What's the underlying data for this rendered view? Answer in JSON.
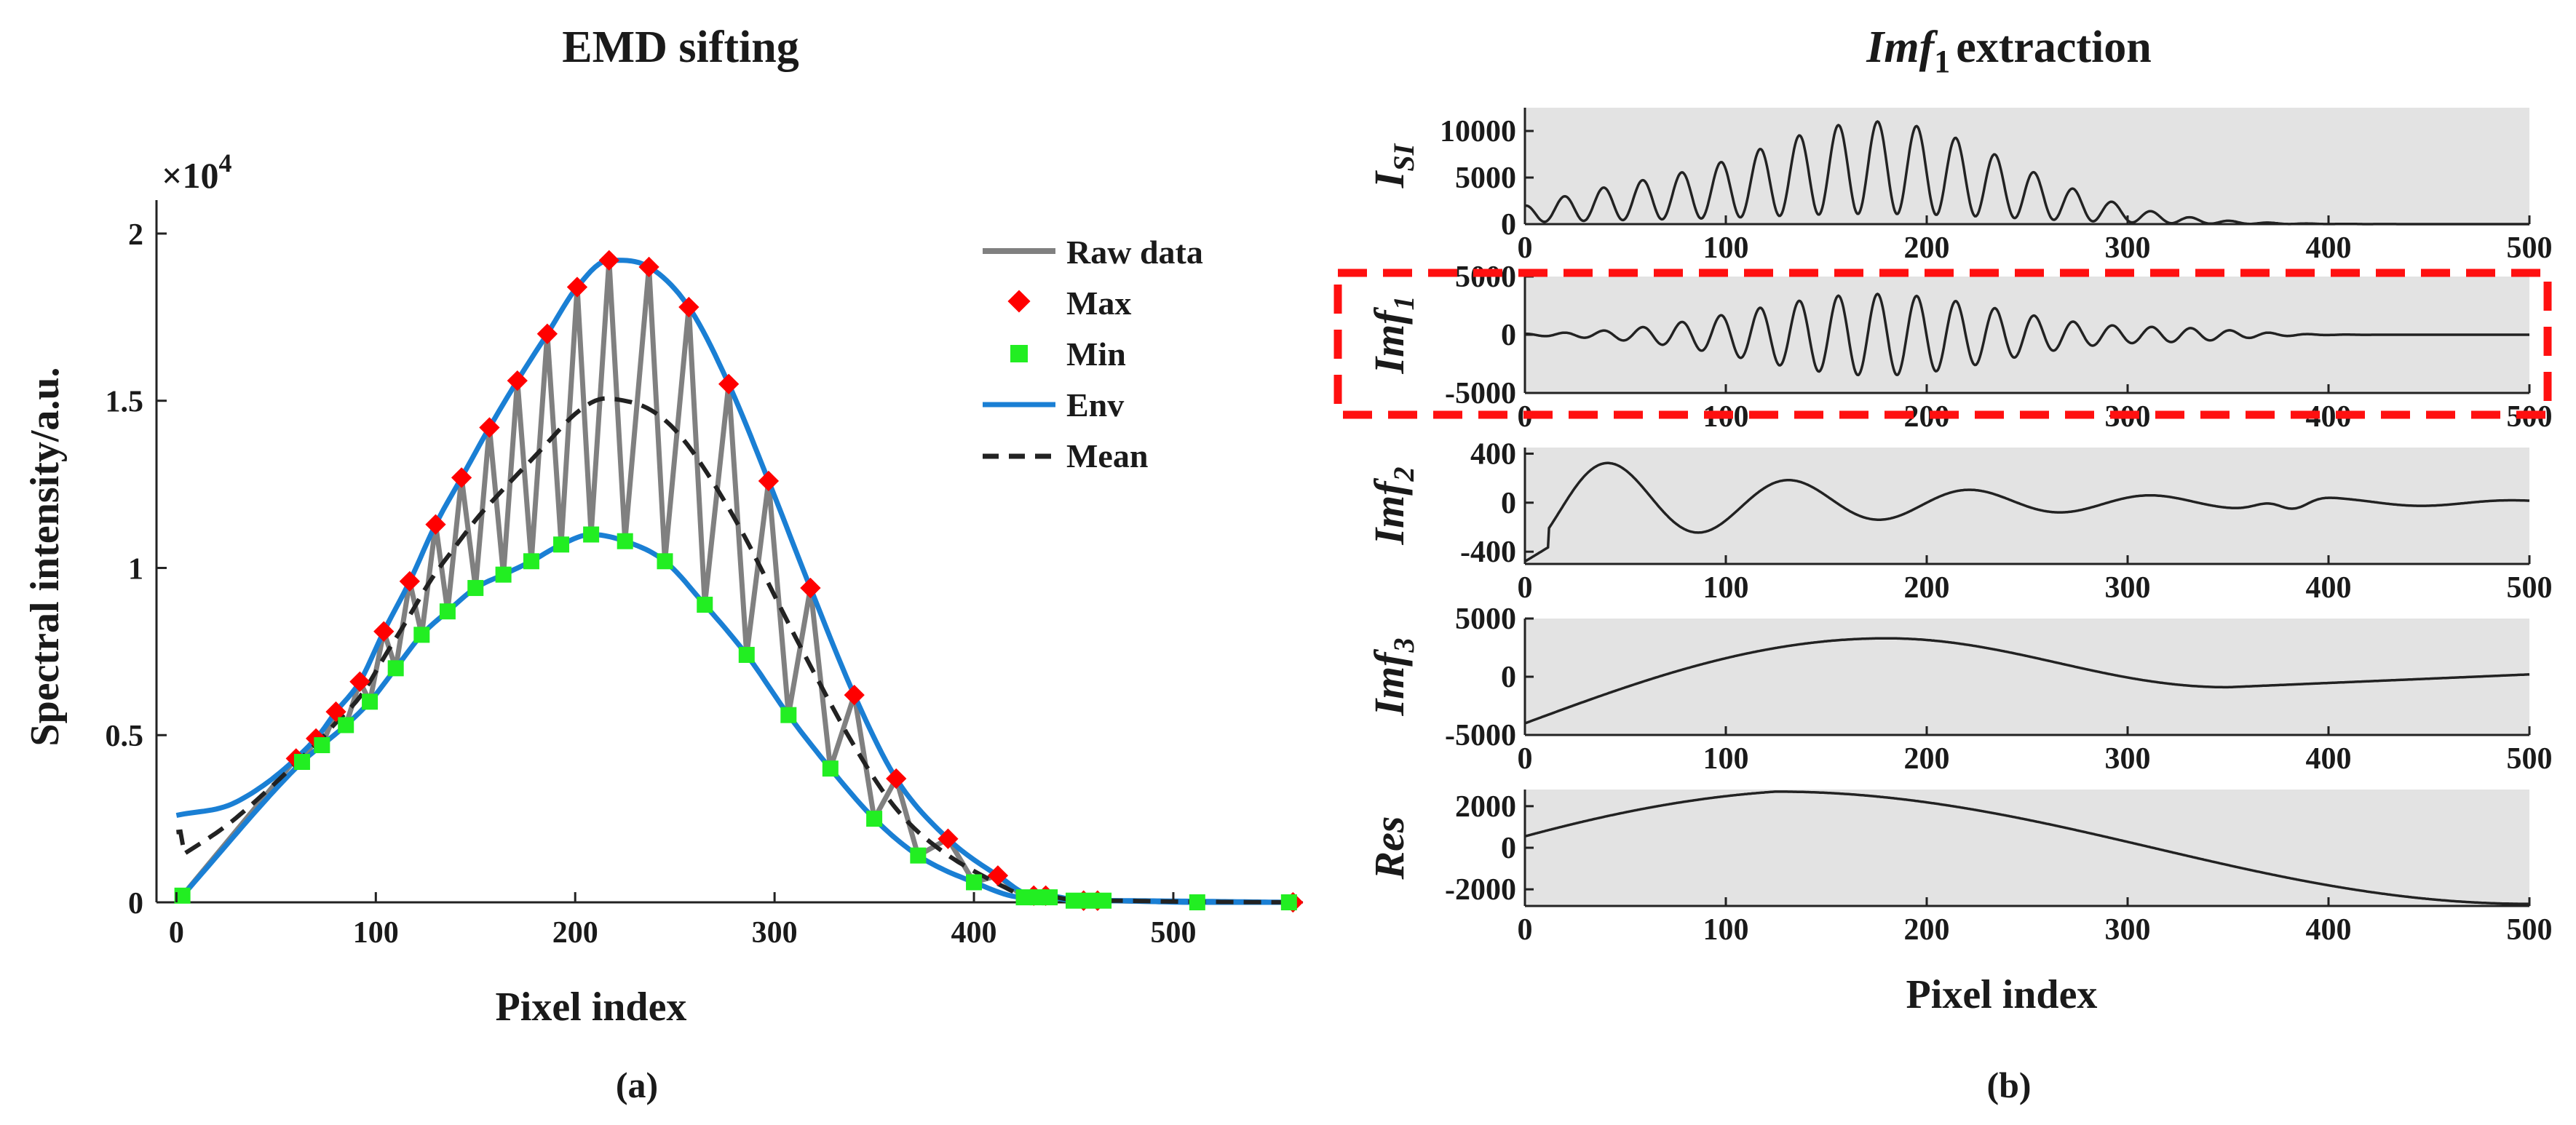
{
  "chart_data": [
    {
      "type": "line",
      "title": "EMD sifting",
      "xlabel": "Pixel index",
      "ylabel": "Spectral intensity/a.u.",
      "exponent_label": "×10",
      "exponent_power": "4",
      "panel_label": "(a)",
      "xlim": [
        -10,
        565
      ],
      "ylim": [
        0,
        2.1
      ],
      "xticks": [
        0,
        100,
        200,
        300,
        400,
        500
      ],
      "yticks": [
        0,
        0.5,
        1,
        1.5,
        2
      ],
      "ytick_labels": [
        "0",
        "0.5",
        "1",
        "1.5",
        "2"
      ],
      "legend": [
        "Raw data",
        "Max",
        "Min",
        "Env",
        "Mean"
      ],
      "colors": {
        "raw": "#808080",
        "max": "#ff0000",
        "min": "#22ee22",
        "env": "#1a7fd4",
        "mean": "#222222"
      },
      "series": [
        {
          "name": "Max",
          "x": [
            60,
            70,
            80,
            92,
            104,
            117,
            130,
            143,
            157,
            171,
            186,
            201,
            217,
            237,
            257,
            277,
            297,
            318,
            340,
            361,
            387,
            412,
            430,
            436,
            455,
            462,
            560
          ],
          "y": [
            0.43,
            0.49,
            0.57,
            0.66,
            0.81,
            0.96,
            1.13,
            1.27,
            1.42,
            1.56,
            1.7,
            1.84,
            1.92,
            1.9,
            1.78,
            1.55,
            1.26,
            0.94,
            0.62,
            0.37,
            0.19,
            0.08,
            0.02,
            0.02,
            0.005,
            0.005,
            0.0
          ]
        },
        {
          "name": "Min",
          "x": [
            3,
            63,
            73,
            85,
            97,
            110,
            123,
            136,
            150,
            164,
            178,
            193,
            208,
            225,
            245,
            265,
            286,
            307,
            328,
            350,
            372,
            400,
            425,
            432,
            438,
            450,
            458,
            465,
            512,
            558
          ],
          "y": [
            0.02,
            0.42,
            0.47,
            0.53,
            0.6,
            0.7,
            0.8,
            0.87,
            0.94,
            0.98,
            1.02,
            1.07,
            1.1,
            1.08,
            1.02,
            0.89,
            0.74,
            0.56,
            0.4,
            0.25,
            0.14,
            0.06,
            0.015,
            0.015,
            0.015,
            0.005,
            0.005,
            0.005,
            0.0,
            0.0
          ]
        }
      ]
    },
    {
      "type": "line",
      "title": "extraction",
      "title_italic": "Imf",
      "title_sub": "1",
      "xlabel": "Pixel index",
      "panel_label": "(b)",
      "xlim": [
        0,
        500
      ],
      "xticks": [
        0,
        100,
        200,
        300,
        400,
        500
      ],
      "line_color": "#222222",
      "background": "#e3e3e3",
      "highlight_color": "#ff1010",
      "subplots": [
        {
          "ylabel": "I",
          "ylabel_sub": "SI",
          "ylim": [
            0,
            12500
          ],
          "yticks": [
            0,
            5000,
            10000
          ],
          "ytick_labels": [
            "0",
            "5000",
            "10000"
          ]
        },
        {
          "ylabel": "Imf",
          "ylabel_sub": "1",
          "ylim": [
            -5000,
            5000
          ],
          "yticks": [
            -5000,
            0,
            5000
          ],
          "ytick_labels": [
            "-5000",
            "0",
            "5000"
          ],
          "highlighted": true
        },
        {
          "ylabel": "Imf",
          "ylabel_sub": "2",
          "ylim": [
            -500,
            450
          ],
          "yticks": [
            -400,
            0,
            400
          ],
          "ytick_labels": [
            "-400",
            "0",
            "400"
          ]
        },
        {
          "ylabel": "Imf",
          "ylabel_sub": "3",
          "ylim": [
            -5000,
            5000
          ],
          "yticks": [
            -5000,
            0,
            5000
          ],
          "ytick_labels": [
            "-5000",
            "0",
            "5000"
          ]
        },
        {
          "ylabel": "Res",
          "ylabel_sub": "",
          "ylim": [
            -2800,
            2800
          ],
          "yticks": [
            -2000,
            0,
            2000
          ],
          "ytick_labels": [
            "-2000",
            "0",
            "2000"
          ]
        }
      ]
    }
  ]
}
